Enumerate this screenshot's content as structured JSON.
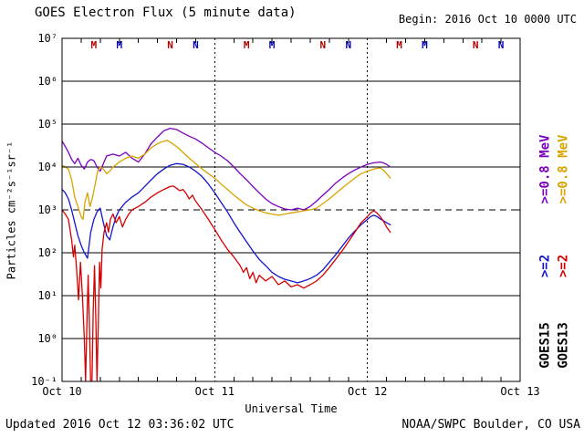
{
  "header": {
    "title": "GOES Electron Flux (5 minute data)",
    "begin": "Begin: 2016 Oct 10 0000 UTC"
  },
  "footer": {
    "updated": "Updated 2016 Oct 12 03:36:02 UTC",
    "source": "NOAA/SWPC Boulder, CO USA"
  },
  "chart_data": {
    "type": "line",
    "title": "GOES Electron Flux (5 minute data)",
    "xlabel": "Universal Time",
    "ylabel": "Particles cm⁻²s⁻¹sr⁻¹",
    "x_range_hours": [
      0,
      72
    ],
    "y_log_range": [
      -1,
      7
    ],
    "grid": "horizontal-decades",
    "x_minor_tick_step_hours": 3,
    "x_ticks": [
      {
        "hour": 0,
        "label": "Oct 10"
      },
      {
        "hour": 24,
        "label": "Oct 11"
      },
      {
        "hour": 48,
        "label": "Oct 12"
      },
      {
        "hour": 72,
        "label": "Oct 13"
      }
    ],
    "day_gridline_hours": [
      24,
      48
    ],
    "y_ticks": [
      {
        "exp": 7,
        "label": "10⁷"
      },
      {
        "exp": 6,
        "label": "10⁶"
      },
      {
        "exp": 5,
        "label": "10⁵"
      },
      {
        "exp": 4,
        "label": "10⁴"
      },
      {
        "exp": 3,
        "label": "10³"
      },
      {
        "exp": 2,
        "label": "10²"
      },
      {
        "exp": 1,
        "label": "10¹"
      },
      {
        "exp": 0,
        "label": "10⁰"
      },
      {
        "exp": -1,
        "label": "10⁻¹"
      }
    ],
    "threshold": {
      "value": 1000,
      "style": "dashed"
    },
    "markers": [
      {
        "label": "M",
        "hour": 5,
        "color": "#b40000"
      },
      {
        "label": "M",
        "hour": 9,
        "color": "#0000b4"
      },
      {
        "label": "N",
        "hour": 17,
        "color": "#b40000"
      },
      {
        "label": "N",
        "hour": 21,
        "color": "#0000b4"
      },
      {
        "label": "M",
        "hour": 29,
        "color": "#b40000"
      },
      {
        "label": "M",
        "hour": 33,
        "color": "#0000b4"
      },
      {
        "label": "N",
        "hour": 41,
        "color": "#b40000"
      },
      {
        "label": "N",
        "hour": 45,
        "color": "#0000b4"
      },
      {
        "label": "M",
        "hour": 53,
        "color": "#b40000"
      },
      {
        "label": "M",
        "hour": 57,
        "color": "#0000b4"
      },
      {
        "label": "N",
        "hour": 65,
        "color": "#b40000"
      },
      {
        "label": "N",
        "hour": 69,
        "color": "#0000b4"
      }
    ],
    "legend": {
      "goes15": {
        "name": "GOES15",
        "e08_label": ">=0.8 MeV",
        "e08_color": "#7a00be",
        "e2_label": ">=2",
        "e2_color": "#1414cc"
      },
      "goes13": {
        "name": "GOES13",
        "e08_label": ">=0.8 MeV",
        "e08_color": "#d9a300",
        "e2_label": ">=2",
        "e2_color": "#d40000"
      }
    },
    "series": [
      {
        "id": "goes15-e08",
        "satellite": "GOES15",
        "channel": ">=0.8 MeV",
        "color": "#7a00be",
        "points": [
          [
            0,
            40000
          ],
          [
            0.5,
            30000
          ],
          [
            1,
            22000
          ],
          [
            1.5,
            15000
          ],
          [
            2,
            12000
          ],
          [
            2.5,
            16000
          ],
          [
            3,
            11000
          ],
          [
            3.5,
            9000
          ],
          [
            4,
            13000
          ],
          [
            4.5,
            15000
          ],
          [
            5,
            14000
          ],
          [
            5.5,
            10000
          ],
          [
            6,
            8000
          ],
          [
            6.5,
            12000
          ],
          [
            7,
            18000
          ],
          [
            8,
            20000
          ],
          [
            9,
            18000
          ],
          [
            10,
            22000
          ],
          [
            11,
            16000
          ],
          [
            12,
            13000
          ],
          [
            13,
            20000
          ],
          [
            14,
            35000
          ],
          [
            15,
            50000
          ],
          [
            16,
            70000
          ],
          [
            17,
            80000
          ],
          [
            18,
            75000
          ],
          [
            19,
            62000
          ],
          [
            20,
            52000
          ],
          [
            21,
            45000
          ],
          [
            22,
            36000
          ],
          [
            23,
            28000
          ],
          [
            24,
            22000
          ],
          [
            25,
            18000
          ],
          [
            26,
            14000
          ],
          [
            27,
            10000
          ],
          [
            28,
            7000
          ],
          [
            29,
            5000
          ],
          [
            30,
            3500
          ],
          [
            31,
            2500
          ],
          [
            32,
            1800
          ],
          [
            33,
            1400
          ],
          [
            34,
            1200
          ],
          [
            35,
            1050
          ],
          [
            36,
            1000
          ],
          [
            37,
            1100
          ],
          [
            38,
            1000
          ],
          [
            39,
            1200
          ],
          [
            40,
            1600
          ],
          [
            41,
            2200
          ],
          [
            42,
            3000
          ],
          [
            43,
            4200
          ],
          [
            44,
            5500
          ],
          [
            45,
            7000
          ],
          [
            46,
            8500
          ],
          [
            47,
            10000
          ],
          [
            48,
            11500
          ],
          [
            49,
            12500
          ],
          [
            50,
            13000
          ],
          [
            50.5,
            12500
          ],
          [
            51,
            11500
          ],
          [
            51.6,
            10000
          ]
        ]
      },
      {
        "id": "goes13-e08",
        "satellite": "GOES13",
        "channel": ">=0.8 MeV",
        "color": "#d9a300",
        "points": [
          [
            0,
            11000
          ],
          [
            0.5,
            10000
          ],
          [
            1,
            9000
          ],
          [
            1.5,
            5000
          ],
          [
            2,
            2000
          ],
          [
            2.5,
            1200
          ],
          [
            3,
            700
          ],
          [
            3.3,
            600
          ],
          [
            3.6,
            1500
          ],
          [
            4,
            2500
          ],
          [
            4.4,
            1200
          ],
          [
            4.8,
            2000
          ],
          [
            5.2,
            4000
          ],
          [
            5.6,
            8000
          ],
          [
            6,
            10000
          ],
          [
            6.5,
            9000
          ],
          [
            7,
            7000
          ],
          [
            7.5,
            8000
          ],
          [
            8,
            10000
          ],
          [
            9,
            13000
          ],
          [
            10,
            16000
          ],
          [
            11,
            18000
          ],
          [
            12,
            16000
          ],
          [
            13,
            20000
          ],
          [
            14,
            28000
          ],
          [
            15,
            35000
          ],
          [
            16,
            40000
          ],
          [
            16.5,
            42000
          ],
          [
            17,
            38000
          ],
          [
            18,
            30000
          ],
          [
            19,
            22000
          ],
          [
            20,
            16000
          ],
          [
            21,
            12000
          ],
          [
            22,
            9000
          ],
          [
            23,
            7000
          ],
          [
            24,
            5500
          ],
          [
            25,
            4000
          ],
          [
            26,
            3000
          ],
          [
            27,
            2200
          ],
          [
            28,
            1700
          ],
          [
            29,
            1300
          ],
          [
            30,
            1100
          ],
          [
            31,
            950
          ],
          [
            32,
            850
          ],
          [
            33,
            800
          ],
          [
            34,
            750
          ],
          [
            35,
            800
          ],
          [
            36,
            850
          ],
          [
            37,
            900
          ],
          [
            38,
            950
          ],
          [
            39,
            1000
          ],
          [
            40,
            1100
          ],
          [
            41,
            1400
          ],
          [
            42,
            1800
          ],
          [
            43,
            2400
          ],
          [
            44,
            3200
          ],
          [
            45,
            4200
          ],
          [
            46,
            5500
          ],
          [
            47,
            7000
          ],
          [
            48,
            8000
          ],
          [
            49,
            9000
          ],
          [
            50,
            9500
          ],
          [
            50.5,
            8500
          ],
          [
            51,
            7000
          ],
          [
            51.6,
            5500
          ]
        ]
      },
      {
        "id": "goes15-e2",
        "satellite": "GOES15",
        "channel": ">=2 MeV",
        "color": "#1414cc",
        "points": [
          [
            0,
            3000
          ],
          [
            0.5,
            2500
          ],
          [
            1,
            1800
          ],
          [
            1.5,
            1000
          ],
          [
            2,
            500
          ],
          [
            2.5,
            250
          ],
          [
            3,
            150
          ],
          [
            3.5,
            100
          ],
          [
            4,
            75
          ],
          [
            4.5,
            300
          ],
          [
            5,
            600
          ],
          [
            5.5,
            900
          ],
          [
            6,
            1100
          ],
          [
            6.5,
            500
          ],
          [
            7,
            250
          ],
          [
            7.5,
            200
          ],
          [
            8,
            400
          ],
          [
            8.5,
            700
          ],
          [
            9,
            1000
          ],
          [
            10,
            1500
          ],
          [
            11,
            2000
          ],
          [
            12,
            2500
          ],
          [
            13,
            3500
          ],
          [
            14,
            5000
          ],
          [
            15,
            7000
          ],
          [
            16,
            9000
          ],
          [
            17,
            11000
          ],
          [
            18,
            12000
          ],
          [
            19,
            11500
          ],
          [
            20,
            10000
          ],
          [
            21,
            8000
          ],
          [
            22,
            6000
          ],
          [
            23,
            4000
          ],
          [
            24,
            2500
          ],
          [
            25,
            1500
          ],
          [
            26,
            900
          ],
          [
            27,
            500
          ],
          [
            28,
            300
          ],
          [
            29,
            180
          ],
          [
            30,
            110
          ],
          [
            31,
            70
          ],
          [
            32,
            50
          ],
          [
            33,
            35
          ],
          [
            34,
            28
          ],
          [
            35,
            24
          ],
          [
            36,
            22
          ],
          [
            37,
            20
          ],
          [
            38,
            22
          ],
          [
            39,
            25
          ],
          [
            40,
            30
          ],
          [
            41,
            40
          ],
          [
            42,
            60
          ],
          [
            43,
            90
          ],
          [
            44,
            140
          ],
          [
            45,
            220
          ],
          [
            46,
            320
          ],
          [
            47,
            450
          ],
          [
            48,
            600
          ],
          [
            48.5,
            700
          ],
          [
            49,
            750
          ],
          [
            49.5,
            700
          ],
          [
            50,
            620
          ],
          [
            50.5,
            560
          ],
          [
            51,
            500
          ],
          [
            51.6,
            450
          ]
        ]
      },
      {
        "id": "goes13-e2",
        "satellite": "GOES13",
        "channel": ">=2 MeV",
        "color": "#d40000",
        "points": [
          [
            0,
            1000
          ],
          [
            0.5,
            800
          ],
          [
            1,
            600
          ],
          [
            1.5,
            200
          ],
          [
            1.8,
            80
          ],
          [
            2,
            150
          ],
          [
            2.3,
            40
          ],
          [
            2.6,
            8
          ],
          [
            2.9,
            60
          ],
          [
            3.2,
            10
          ],
          [
            3.5,
            1
          ],
          [
            3.7,
            0.1
          ],
          [
            3.9,
            2
          ],
          [
            4.1,
            30
          ],
          [
            4.3,
            2
          ],
          [
            4.5,
            0.08
          ],
          [
            4.7,
            0.1
          ],
          [
            4.9,
            5
          ],
          [
            5.1,
            50
          ],
          [
            5.3,
            3
          ],
          [
            5.5,
            0.1
          ],
          [
            5.7,
            2
          ],
          [
            5.9,
            60
          ],
          [
            6.1,
            15
          ],
          [
            6.3,
            120
          ],
          [
            6.6,
            300
          ],
          [
            7,
            500
          ],
          [
            7.3,
            300
          ],
          [
            7.6,
            600
          ],
          [
            8,
            800
          ],
          [
            8.5,
            500
          ],
          [
            9,
            700
          ],
          [
            9.5,
            400
          ],
          [
            10,
            600
          ],
          [
            10.5,
            800
          ],
          [
            11,
            1000
          ],
          [
            12,
            1200
          ],
          [
            13,
            1500
          ],
          [
            14,
            2000
          ],
          [
            15,
            2500
          ],
          [
            16,
            3000
          ],
          [
            17,
            3500
          ],
          [
            17.5,
            3600
          ],
          [
            18,
            3200
          ],
          [
            18.5,
            2800
          ],
          [
            19,
            3000
          ],
          [
            19.5,
            2400
          ],
          [
            20,
            1800
          ],
          [
            20.5,
            2200
          ],
          [
            21,
            1600
          ],
          [
            22,
            1000
          ],
          [
            23,
            600
          ],
          [
            24,
            350
          ],
          [
            25,
            200
          ],
          [
            26,
            120
          ],
          [
            27,
            80
          ],
          [
            28,
            50
          ],
          [
            28.5,
            35
          ],
          [
            29,
            45
          ],
          [
            29.5,
            25
          ],
          [
            30,
            35
          ],
          [
            30.5,
            20
          ],
          [
            31,
            30
          ],
          [
            32,
            22
          ],
          [
            33,
            28
          ],
          [
            34,
            18
          ],
          [
            35,
            22
          ],
          [
            36,
            16
          ],
          [
            37,
            18
          ],
          [
            38,
            15
          ],
          [
            39,
            18
          ],
          [
            40,
            22
          ],
          [
            41,
            30
          ],
          [
            42,
            45
          ],
          [
            43,
            70
          ],
          [
            44,
            110
          ],
          [
            45,
            180
          ],
          [
            46,
            300
          ],
          [
            47,
            500
          ],
          [
            48,
            700
          ],
          [
            48.5,
            850
          ],
          [
            49,
            950
          ],
          [
            49.5,
            850
          ],
          [
            50,
            700
          ],
          [
            50.5,
            550
          ],
          [
            51,
            400
          ],
          [
            51.6,
            300
          ]
        ]
      }
    ]
  }
}
